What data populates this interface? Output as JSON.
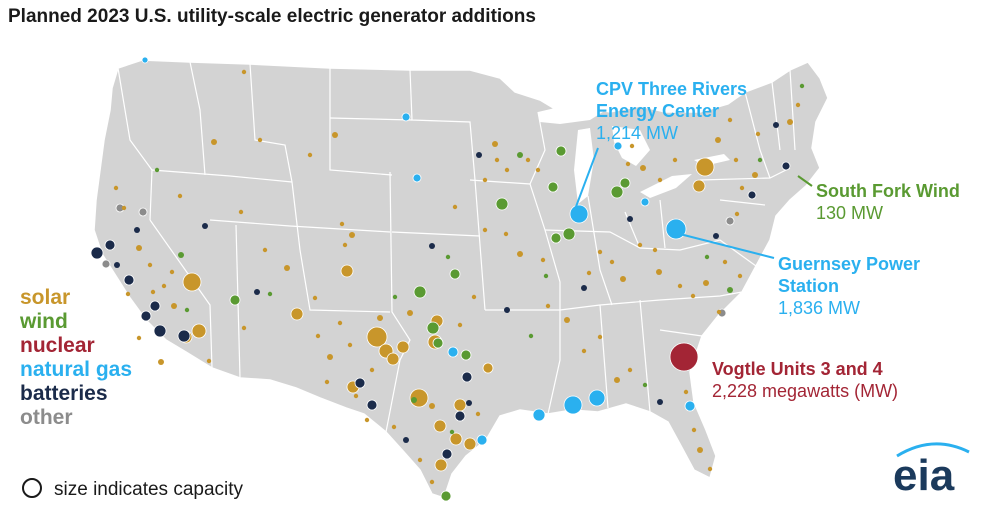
{
  "title": "Planned 2023 U.S. utility-scale electric generator additions",
  "legend": {
    "items": [
      {
        "label": "solar",
        "color": "#c8962b"
      },
      {
        "label": "wind",
        "color": "#5a9a32"
      },
      {
        "label": "nuclear",
        "color": "#a32535"
      },
      {
        "label": "natural gas",
        "color": "#2ab0ef"
      },
      {
        "label": "batteries",
        "color": "#1b2b4a"
      },
      {
        "label": "other",
        "color": "#8c8c8c"
      }
    ],
    "size_note": "size indicates capacity"
  },
  "callouts": {
    "cpv": {
      "line1": "CPV Three Rivers",
      "line2": "Energy Center",
      "value": "1,214 MW",
      "color": "#2ab0ef"
    },
    "south_fork": {
      "line1": "South Fork Wind",
      "value": "130 MW",
      "color": "#5a9a32"
    },
    "guernsey": {
      "line1": "Guernsey Power",
      "line2": "Station",
      "value": "1,836 MW",
      "color": "#2ab0ef"
    },
    "vogtle": {
      "line1": "Vogtle Units 3 and 4",
      "value": "2,228 megawatts (MW)",
      "color": "#a32535"
    }
  },
  "logo": "eia",
  "colors": {
    "land": "#d3d3d3",
    "border": "#ffffff",
    "water": "#ffffff"
  }
}
